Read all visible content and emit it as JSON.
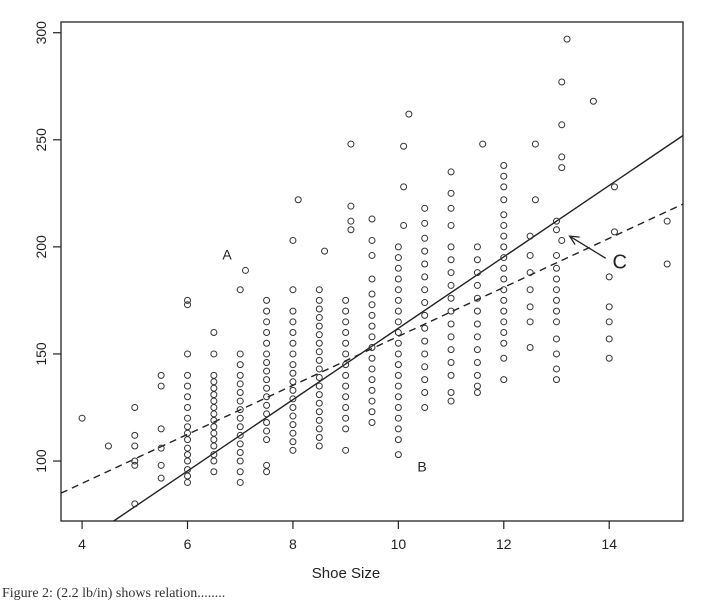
{
  "chart_data": {
    "type": "scatter",
    "title": "",
    "xlabel": "Shoe Size",
    "ylabel": "",
    "xlim": [
      3.6,
      15.4
    ],
    "ylim": [
      72,
      305
    ],
    "xticks": [
      4,
      6,
      8,
      10,
      12,
      14
    ],
    "yticks": [
      100,
      150,
      200,
      250,
      300
    ],
    "grid": false,
    "legend": "none",
    "series": [
      {
        "points": [
          [
            4,
            120
          ],
          [
            4.5,
            107
          ],
          [
            5,
            80
          ],
          [
            5,
            98
          ],
          [
            5,
            100
          ],
          [
            5,
            107
          ],
          [
            5,
            112
          ],
          [
            5,
            125
          ],
          [
            5.5,
            92
          ],
          [
            5.5,
            98
          ],
          [
            5.5,
            106
          ],
          [
            5.5,
            115
          ],
          [
            5.5,
            135
          ],
          [
            5.5,
            140
          ],
          [
            6,
            90
          ],
          [
            6,
            93
          ],
          [
            6,
            96
          ],
          [
            6,
            100
          ],
          [
            6,
            103
          ],
          [
            6,
            106
          ],
          [
            6,
            110
          ],
          [
            6,
            113
          ],
          [
            6,
            116
          ],
          [
            6,
            120
          ],
          [
            6,
            125
          ],
          [
            6,
            130
          ],
          [
            6,
            135
          ],
          [
            6,
            140
          ],
          [
            6,
            150
          ],
          [
            6,
            173
          ],
          [
            6,
            175
          ],
          [
            6.5,
            95
          ],
          [
            6.5,
            100
          ],
          [
            6.5,
            103
          ],
          [
            6.5,
            107
          ],
          [
            6.5,
            110
          ],
          [
            6.5,
            113
          ],
          [
            6.5,
            116
          ],
          [
            6.5,
            119
          ],
          [
            6.5,
            122
          ],
          [
            6.5,
            125
          ],
          [
            6.5,
            128
          ],
          [
            6.5,
            131
          ],
          [
            6.5,
            134
          ],
          [
            6.5,
            137
          ],
          [
            6.5,
            140
          ],
          [
            6.5,
            150
          ],
          [
            6.5,
            160
          ],
          [
            7,
            90
          ],
          [
            7,
            95
          ],
          [
            7,
            100
          ],
          [
            7,
            104
          ],
          [
            7,
            108
          ],
          [
            7,
            112
          ],
          [
            7,
            116
          ],
          [
            7,
            120
          ],
          [
            7,
            124
          ],
          [
            7,
            128
          ],
          [
            7,
            132
          ],
          [
            7,
            136
          ],
          [
            7,
            140
          ],
          [
            7,
            145
          ],
          [
            7,
            150
          ],
          [
            7,
            180
          ],
          [
            7.1,
            189
          ],
          [
            7.5,
            95
          ],
          [
            7.5,
            98
          ],
          [
            7.5,
            110
          ],
          [
            7.5,
            114
          ],
          [
            7.5,
            118
          ],
          [
            7.5,
            122
          ],
          [
            7.5,
            126
          ],
          [
            7.5,
            130
          ],
          [
            7.5,
            134
          ],
          [
            7.5,
            138
          ],
          [
            7.5,
            142
          ],
          [
            7.5,
            146
          ],
          [
            7.5,
            150
          ],
          [
            7.5,
            155
          ],
          [
            7.5,
            160
          ],
          [
            7.5,
            165
          ],
          [
            7.5,
            170
          ],
          [
            7.5,
            175
          ],
          [
            8,
            105
          ],
          [
            8,
            109
          ],
          [
            8,
            113
          ],
          [
            8,
            117
          ],
          [
            8,
            121
          ],
          [
            8,
            125
          ],
          [
            8,
            129
          ],
          [
            8,
            133
          ],
          [
            8,
            137
          ],
          [
            8,
            141
          ],
          [
            8,
            145
          ],
          [
            8,
            150
          ],
          [
            8,
            155
          ],
          [
            8,
            160
          ],
          [
            8,
            165
          ],
          [
            8,
            170
          ],
          [
            8,
            180
          ],
          [
            8,
            203
          ],
          [
            8.1,
            222
          ],
          [
            8.5,
            107
          ],
          [
            8.5,
            111
          ],
          [
            8.5,
            115
          ],
          [
            8.5,
            119
          ],
          [
            8.5,
            123
          ],
          [
            8.5,
            127
          ],
          [
            8.5,
            131
          ],
          [
            8.5,
            135
          ],
          [
            8.5,
            139
          ],
          [
            8.5,
            143
          ],
          [
            8.5,
            147
          ],
          [
            8.5,
            151
          ],
          [
            8.5,
            155
          ],
          [
            8.5,
            159
          ],
          [
            8.5,
            163
          ],
          [
            8.5,
            167
          ],
          [
            8.5,
            171
          ],
          [
            8.5,
            175
          ],
          [
            8.5,
            180
          ],
          [
            8.6,
            198
          ],
          [
            9,
            105
          ],
          [
            9,
            115
          ],
          [
            9,
            120
          ],
          [
            9,
            125
          ],
          [
            9,
            130
          ],
          [
            9,
            135
          ],
          [
            9,
            140
          ],
          [
            9,
            145
          ],
          [
            9,
            150
          ],
          [
            9,
            155
          ],
          [
            9,
            160
          ],
          [
            9,
            165
          ],
          [
            9,
            170
          ],
          [
            9,
            175
          ],
          [
            9.1,
            208
          ],
          [
            9.1,
            212
          ],
          [
            9.1,
            219
          ],
          [
            9.1,
            248
          ],
          [
            9.5,
            118
          ],
          [
            9.5,
            123
          ],
          [
            9.5,
            128
          ],
          [
            9.5,
            133
          ],
          [
            9.5,
            138
          ],
          [
            9.5,
            143
          ],
          [
            9.5,
            148
          ],
          [
            9.5,
            153
          ],
          [
            9.5,
            158
          ],
          [
            9.5,
            163
          ],
          [
            9.5,
            168
          ],
          [
            9.5,
            173
          ],
          [
            9.5,
            178
          ],
          [
            9.5,
            185
          ],
          [
            9.5,
            196
          ],
          [
            9.5,
            203
          ],
          [
            9.5,
            213
          ],
          [
            10,
            103
          ],
          [
            10,
            110
          ],
          [
            10,
            115
          ],
          [
            10,
            120
          ],
          [
            10,
            125
          ],
          [
            10,
            130
          ],
          [
            10,
            135
          ],
          [
            10,
            140
          ],
          [
            10,
            145
          ],
          [
            10,
            150
          ],
          [
            10,
            155
          ],
          [
            10,
            160
          ],
          [
            10,
            165
          ],
          [
            10,
            170
          ],
          [
            10,
            175
          ],
          [
            10,
            180
          ],
          [
            10,
            185
          ],
          [
            10,
            190
          ],
          [
            10,
            195
          ],
          [
            10,
            200
          ],
          [
            10.1,
            210
          ],
          [
            10.1,
            228
          ],
          [
            10.1,
            247
          ],
          [
            10.2,
            262
          ],
          [
            10.5,
            125
          ],
          [
            10.5,
            132
          ],
          [
            10.5,
            138
          ],
          [
            10.5,
            144
          ],
          [
            10.5,
            150
          ],
          [
            10.5,
            156
          ],
          [
            10.5,
            162
          ],
          [
            10.5,
            168
          ],
          [
            10.5,
            174
          ],
          [
            10.5,
            180
          ],
          [
            10.5,
            186
          ],
          [
            10.5,
            192
          ],
          [
            10.5,
            198
          ],
          [
            10.5,
            204
          ],
          [
            10.5,
            211
          ],
          [
            10.5,
            218
          ],
          [
            11,
            128
          ],
          [
            11,
            132
          ],
          [
            11,
            140
          ],
          [
            11,
            146
          ],
          [
            11,
            152
          ],
          [
            11,
            158
          ],
          [
            11,
            164
          ],
          [
            11,
            170
          ],
          [
            11,
            176
          ],
          [
            11,
            182
          ],
          [
            11,
            188
          ],
          [
            11,
            194
          ],
          [
            11,
            200
          ],
          [
            11,
            210
          ],
          [
            11,
            218
          ],
          [
            11,
            225
          ],
          [
            11,
            235
          ],
          [
            11.5,
            132
          ],
          [
            11.5,
            135
          ],
          [
            11.5,
            140
          ],
          [
            11.5,
            146
          ],
          [
            11.5,
            152
          ],
          [
            11.5,
            158
          ],
          [
            11.5,
            164
          ],
          [
            11.5,
            170
          ],
          [
            11.5,
            176
          ],
          [
            11.5,
            182
          ],
          [
            11.5,
            188
          ],
          [
            11.5,
            194
          ],
          [
            11.5,
            200
          ],
          [
            11.6,
            248
          ],
          [
            12,
            138
          ],
          [
            12,
            148
          ],
          [
            12,
            155
          ],
          [
            12,
            160
          ],
          [
            12,
            165
          ],
          [
            12,
            170
          ],
          [
            12,
            175
          ],
          [
            12,
            180
          ],
          [
            12,
            185
          ],
          [
            12,
            190
          ],
          [
            12,
            195
          ],
          [
            12,
            200
          ],
          [
            12,
            205
          ],
          [
            12,
            210
          ],
          [
            12,
            215
          ],
          [
            12,
            222
          ],
          [
            12,
            228
          ],
          [
            12,
            233
          ],
          [
            12,
            238
          ],
          [
            12.5,
            153
          ],
          [
            12.5,
            165
          ],
          [
            12.5,
            172
          ],
          [
            12.5,
            180
          ],
          [
            12.5,
            188
          ],
          [
            12.5,
            196
          ],
          [
            12.5,
            205
          ],
          [
            12.6,
            222
          ],
          [
            12.6,
            248
          ],
          [
            13,
            138
          ],
          [
            13,
            143
          ],
          [
            13,
            150
          ],
          [
            13,
            157
          ],
          [
            13,
            165
          ],
          [
            13,
            170
          ],
          [
            13,
            175
          ],
          [
            13,
            180
          ],
          [
            13,
            185
          ],
          [
            13,
            190
          ],
          [
            13,
            196
          ],
          [
            13.1,
            203
          ],
          [
            13,
            208
          ],
          [
            13,
            212
          ],
          [
            13.1,
            237
          ],
          [
            13.1,
            242
          ],
          [
            13.1,
            257
          ],
          [
            13.1,
            277
          ],
          [
            13.2,
            297
          ],
          [
            13.7,
            268
          ],
          [
            14,
            148
          ],
          [
            14,
            157
          ],
          [
            14,
            165
          ],
          [
            14,
            172
          ],
          [
            14,
            186
          ],
          [
            14.1,
            207
          ],
          [
            14.1,
            228
          ],
          [
            15.1,
            192
          ],
          [
            15.1,
            212
          ]
        ]
      }
    ],
    "lines": [
      {
        "style": "solid",
        "x": [
          4.6,
          15.4
        ],
        "y": [
          72,
          252
        ]
      },
      {
        "style": "dashed",
        "x": [
          3.6,
          15.4
        ],
        "y": [
          85,
          220
        ]
      }
    ],
    "annotations": [
      {
        "text": "A",
        "x": 6.75,
        "y": 194,
        "font": "serif"
      },
      {
        "text": "B",
        "x": 10.45,
        "y": 95,
        "font": "sans"
      },
      {
        "text": "C",
        "x": 14.2,
        "y": 190,
        "font": "serif",
        "arrow_to": [
          13.25,
          205
        ]
      }
    ]
  },
  "caption": "Figure 2: (2.2 lb/in) shows relation........"
}
